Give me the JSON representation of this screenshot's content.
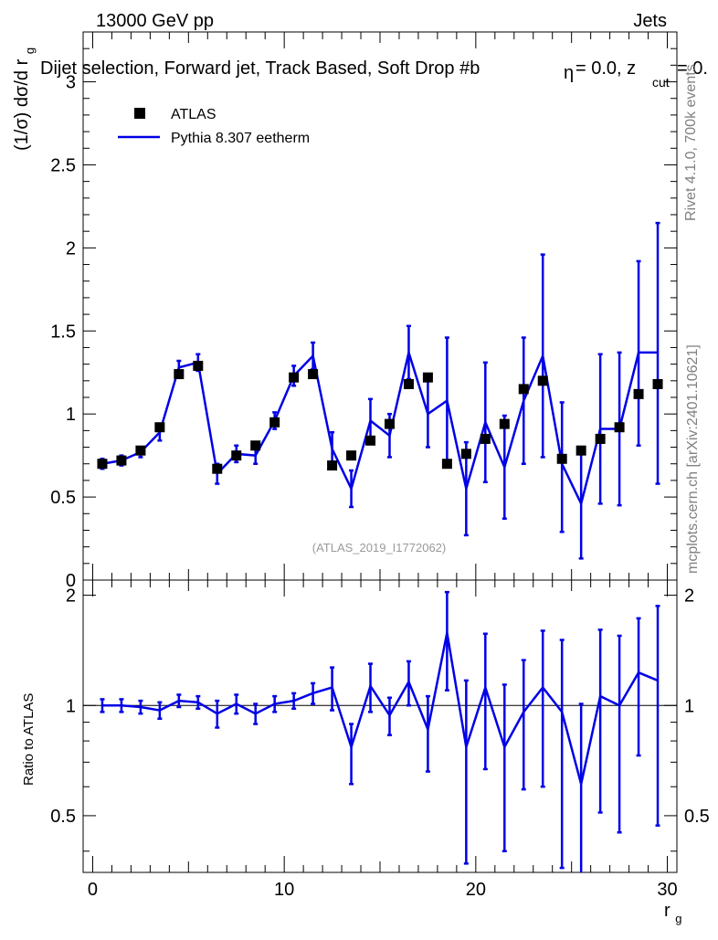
{
  "header": {
    "energy_label": "13000 GeV pp",
    "process_label": "Jets",
    "selection_title": "Dijet selection, Forward jet, Track Based, Soft Drop #b",
    "title_tail": "= 0.0, z",
    "title_cut": "cut",
    "title_equals": "= 0.",
    "beta_symbol": "η",
    "analysis_id": "(ATLAS_2019_I1772062)",
    "side_rivet": "Rivet 4.1.0,  700k events",
    "side_mcplots": "mcplots.cern.ch [arXiv:2401.10621]"
  },
  "legend": {
    "data_label": "ATLAS",
    "mc_label": "Pythia 8.307 eetherm"
  },
  "colors": {
    "data": "#000000",
    "mc": "#0000e6"
  },
  "chart_data": [
    {
      "type": "scatter",
      "panel": "main",
      "ylabel": "(1/σ) dσ/d r",
      "ylabel_sub": "g",
      "xlabel": "r",
      "xlabel_sub": "g",
      "xlim": [
        -0.5,
        30.5
      ],
      "ylim": [
        0,
        3.3
      ],
      "ytick_labels": [
        "0",
        "0.5",
        "1",
        "1.5",
        "2",
        "2.5",
        "3"
      ],
      "x": [
        0.5,
        1.5,
        2.5,
        3.5,
        4.5,
        5.5,
        6.5,
        7.5,
        8.5,
        9.5,
        10.5,
        11.5,
        12.5,
        13.5,
        14.5,
        15.5,
        16.5,
        17.5,
        18.5,
        19.5,
        20.5,
        21.5,
        22.5,
        23.5,
        24.5,
        25.5,
        26.5,
        27.5,
        28.5,
        29.5
      ],
      "series": [
        {
          "name": "ATLAS",
          "values": [
            0.7,
            0.72,
            0.78,
            0.92,
            1.24,
            1.29,
            0.67,
            0.75,
            0.81,
            0.95,
            1.22,
            1.24,
            0.69,
            0.75,
            0.84,
            0.94,
            1.18,
            1.22,
            0.7,
            0.76,
            0.85,
            0.94,
            1.15,
            1.2,
            0.73,
            0.78,
            0.85,
            0.92,
            1.12,
            1.18
          ]
        },
        {
          "name": "Pythia 8.307 eetherm",
          "values": [
            0.7,
            0.72,
            0.77,
            0.89,
            1.28,
            1.31,
            0.64,
            0.76,
            0.75,
            0.96,
            1.23,
            1.35,
            0.79,
            0.55,
            0.96,
            0.87,
            1.37,
            1.0,
            1.08,
            0.55,
            0.95,
            0.68,
            1.08,
            1.35,
            0.7,
            0.46,
            0.91,
            0.91,
            1.37,
            1.37
          ],
          "err_low": [
            0.03,
            0.03,
            0.03,
            0.05,
            0.04,
            0.05,
            0.06,
            0.05,
            0.05,
            0.05,
            0.06,
            0.08,
            0.1,
            0.11,
            0.13,
            0.13,
            0.16,
            0.2,
            0.38,
            0.28,
            0.36,
            0.31,
            0.38,
            0.61,
            0.41,
            0.33,
            0.45,
            0.46,
            0.56,
            0.79
          ],
          "err_high": [
            0.03,
            0.03,
            0.03,
            0.05,
            0.04,
            0.05,
            0.06,
            0.05,
            0.05,
            0.05,
            0.06,
            0.08,
            0.1,
            0.11,
            0.13,
            0.13,
            0.16,
            0.2,
            0.38,
            0.28,
            0.36,
            0.31,
            0.38,
            0.61,
            0.37,
            0.33,
            0.45,
            0.46,
            0.55,
            0.78
          ]
        }
      ]
    },
    {
      "type": "line",
      "panel": "ratio",
      "ylabel": "Ratio to ATLAS",
      "xlim": [
        -0.5,
        30.5
      ],
      "ylim": [
        0.35,
        2.2
      ],
      "ytick_labels": [
        "0.5",
        "1",
        "2"
      ],
      "ytick_values": [
        0.5,
        1,
        2
      ],
      "xtick_labels": [
        "0",
        "10",
        "20",
        "30"
      ],
      "xtick_values": [
        0,
        10,
        20,
        30
      ],
      "x": [
        0.5,
        1.5,
        2.5,
        3.5,
        4.5,
        5.5,
        6.5,
        7.5,
        8.5,
        9.5,
        10.5,
        11.5,
        12.5,
        13.5,
        14.5,
        15.5,
        16.5,
        17.5,
        18.5,
        19.5,
        20.5,
        21.5,
        22.5,
        23.5,
        24.5,
        25.5,
        26.5,
        27.5,
        28.5,
        29.5
      ],
      "reference": 1.0,
      "series": [
        {
          "name": "Pythia 8.307 eetherm / ATLAS",
          "values": [
            1.0,
            1.0,
            0.99,
            0.97,
            1.03,
            1.02,
            0.95,
            1.01,
            0.95,
            1.01,
            1.03,
            1.08,
            1.12,
            0.77,
            1.13,
            0.94,
            1.16,
            0.86,
            1.58,
            0.77,
            1.12,
            0.77,
            0.96,
            1.12,
            0.96,
            0.61,
            1.06,
            1.0,
            1.23,
            1.17
          ],
          "err_low": [
            0.04,
            0.04,
            0.04,
            0.05,
            0.04,
            0.04,
            0.08,
            0.06,
            0.06,
            0.05,
            0.05,
            0.07,
            0.15,
            0.16,
            0.17,
            0.11,
            0.16,
            0.2,
            0.48,
            0.4,
            0.45,
            0.37,
            0.37,
            0.52,
            0.6,
            0.4,
            0.55,
            0.55,
            0.5,
            0.7
          ],
          "err_high": [
            0.04,
            0.04,
            0.04,
            0.05,
            0.04,
            0.04,
            0.08,
            0.06,
            0.06,
            0.05,
            0.05,
            0.07,
            0.15,
            0.12,
            0.17,
            0.11,
            0.16,
            0.2,
            0.46,
            0.4,
            0.45,
            0.37,
            0.37,
            0.48,
            0.55,
            0.4,
            0.55,
            0.55,
            0.5,
            0.7
          ]
        }
      ]
    }
  ]
}
